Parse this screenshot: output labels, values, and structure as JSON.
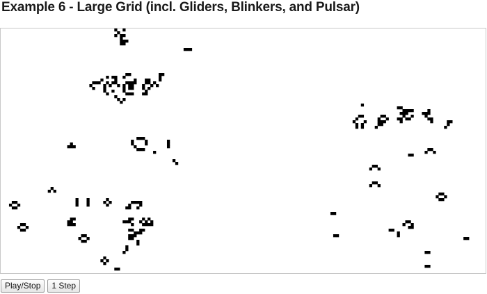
{
  "page": {
    "title": "Example 6 - Large Grid (incl. Gliders, Blinkers, and Pulsar)"
  },
  "controls": {
    "play_stop_label": "Play/Stop",
    "step_label": "1 Step"
  },
  "grid": {
    "cols": 175,
    "rows": 88,
    "live_color": "#000000",
    "dead_color": "#ffffff",
    "border_color": "#c8c8c8",
    "live_cells": [
      [
        41,
        0
      ],
      [
        44,
        0
      ],
      [
        42,
        1
      ],
      [
        41,
        2
      ],
      [
        43,
        2
      ],
      [
        44,
        2
      ],
      [
        43,
        3
      ],
      [
        43,
        4
      ],
      [
        44,
        4
      ],
      [
        45,
        4
      ],
      [
        43,
        5
      ],
      [
        44,
        5
      ],
      [
        66,
        7
      ],
      [
        67,
        7
      ],
      [
        68,
        7
      ],
      [
        45,
        16
      ],
      [
        46,
        16
      ],
      [
        57,
        16
      ],
      [
        58,
        16
      ],
      [
        38,
        17
      ],
      [
        40,
        17
      ],
      [
        41,
        17
      ],
      [
        44,
        17
      ],
      [
        57,
        17
      ],
      [
        36,
        18
      ],
      [
        41,
        18
      ],
      [
        48,
        18
      ],
      [
        52,
        18
      ],
      [
        53,
        18
      ],
      [
        57,
        18
      ],
      [
        33,
        19
      ],
      [
        34,
        19
      ],
      [
        35,
        19
      ],
      [
        38,
        19
      ],
      [
        40,
        19
      ],
      [
        41,
        19
      ],
      [
        45,
        19
      ],
      [
        46,
        19
      ],
      [
        47,
        19
      ],
      [
        48,
        19
      ],
      [
        52,
        19
      ],
      [
        53,
        19
      ],
      [
        55,
        19
      ],
      [
        32,
        20
      ],
      [
        37,
        20
      ],
      [
        39,
        20
      ],
      [
        42,
        20
      ],
      [
        44,
        20
      ],
      [
        46,
        20
      ],
      [
        47,
        20
      ],
      [
        51,
        20
      ],
      [
        54,
        20
      ],
      [
        56,
        20
      ],
      [
        33,
        21
      ],
      [
        37,
        21
      ],
      [
        44,
        21
      ],
      [
        46,
        21
      ],
      [
        47,
        21
      ],
      [
        51,
        21
      ],
      [
        53,
        21
      ],
      [
        37,
        22
      ],
      [
        40,
        22
      ],
      [
        44,
        22
      ],
      [
        52,
        22
      ],
      [
        38,
        23
      ],
      [
        45,
        23
      ],
      [
        46,
        23
      ],
      [
        47,
        23
      ],
      [
        51,
        23
      ],
      [
        52,
        23
      ],
      [
        41,
        24
      ],
      [
        143,
        28
      ],
      [
        144,
        28
      ],
      [
        42,
        25
      ],
      [
        44,
        25
      ],
      [
        145,
        29
      ],
      [
        146,
        29
      ],
      [
        147,
        29
      ],
      [
        148,
        29
      ],
      [
        154,
        29
      ],
      [
        43,
        26
      ],
      [
        130,
        27
      ],
      [
        144,
        30
      ],
      [
        145,
        30
      ],
      [
        146,
        30
      ],
      [
        152,
        30
      ],
      [
        153,
        30
      ],
      [
        154,
        30
      ],
      [
        129,
        31
      ],
      [
        130,
        31
      ],
      [
        137,
        31
      ],
      [
        138,
        31
      ],
      [
        145,
        31
      ],
      [
        148,
        31
      ],
      [
        153,
        31
      ],
      [
        128,
        32
      ],
      [
        136,
        32
      ],
      [
        139,
        32
      ],
      [
        143,
        32
      ],
      [
        144,
        32
      ],
      [
        146,
        32
      ],
      [
        147,
        32
      ],
      [
        154,
        32
      ],
      [
        155,
        32
      ],
      [
        127,
        33
      ],
      [
        131,
        33
      ],
      [
        136,
        33
      ],
      [
        137,
        33
      ],
      [
        138,
        33
      ],
      [
        144,
        33
      ],
      [
        155,
        33
      ],
      [
        161,
        33
      ],
      [
        162,
        33
      ],
      [
        128,
        34
      ],
      [
        130,
        34
      ],
      [
        136,
        34
      ],
      [
        137,
        34
      ],
      [
        161,
        34
      ],
      [
        128,
        35
      ],
      [
        130,
        35
      ],
      [
        135,
        35
      ],
      [
        160,
        35
      ],
      [
        49,
        39
      ],
      [
        50,
        39
      ],
      [
        51,
        39
      ],
      [
        47,
        40
      ],
      [
        52,
        40
      ],
      [
        60,
        40
      ],
      [
        25,
        41
      ],
      [
        47,
        41
      ],
      [
        52,
        41
      ],
      [
        60,
        41
      ],
      [
        24,
        42
      ],
      [
        25,
        42
      ],
      [
        26,
        42
      ],
      [
        48,
        42
      ],
      [
        60,
        42
      ],
      [
        49,
        43
      ],
      [
        50,
        43
      ],
      [
        51,
        43
      ],
      [
        154,
        43
      ],
      [
        155,
        43
      ],
      [
        55,
        44
      ],
      [
        153,
        44
      ],
      [
        156,
        44
      ],
      [
        147,
        45
      ],
      [
        148,
        45
      ],
      [
        62,
        47
      ],
      [
        134,
        49
      ],
      [
        135,
        49
      ],
      [
        63,
        48
      ],
      [
        133,
        50
      ],
      [
        136,
        50
      ],
      [
        134,
        55
      ],
      [
        135,
        55
      ],
      [
        133,
        56
      ],
      [
        136,
        56
      ],
      [
        18,
        57
      ],
      [
        17,
        58
      ],
      [
        19,
        58
      ],
      [
        158,
        59
      ],
      [
        159,
        59
      ],
      [
        157,
        60
      ],
      [
        160,
        60
      ],
      [
        158,
        61
      ],
      [
        159,
        61
      ],
      [
        4,
        62
      ],
      [
        5,
        62
      ],
      [
        3,
        63
      ],
      [
        6,
        63
      ],
      [
        4,
        64
      ],
      [
        5,
        64
      ],
      [
        27,
        61
      ],
      [
        27,
        62
      ],
      [
        27,
        63
      ],
      [
        31,
        61
      ],
      [
        31,
        62
      ],
      [
        31,
        63
      ],
      [
        38,
        61
      ],
      [
        37,
        62
      ],
      [
        39,
        62
      ],
      [
        38,
        63
      ],
      [
        47,
        62
      ],
      [
        48,
        62
      ],
      [
        49,
        62
      ],
      [
        50,
        62
      ],
      [
        46,
        63
      ],
      [
        50,
        63
      ],
      [
        119,
        66
      ],
      [
        120,
        66
      ],
      [
        45,
        64
      ],
      [
        46,
        64
      ],
      [
        49,
        64
      ],
      [
        25,
        68
      ],
      [
        26,
        68
      ],
      [
        46,
        68
      ],
      [
        47,
        68
      ],
      [
        51,
        68
      ],
      [
        53,
        68
      ],
      [
        146,
        69
      ],
      [
        147,
        69
      ],
      [
        24,
        69
      ],
      [
        25,
        69
      ],
      [
        44,
        69
      ],
      [
        45,
        69
      ],
      [
        46,
        69
      ],
      [
        50,
        69
      ],
      [
        52,
        69
      ],
      [
        54,
        69
      ],
      [
        145,
        70
      ],
      [
        148,
        70
      ],
      [
        24,
        70
      ],
      [
        25,
        70
      ],
      [
        26,
        70
      ],
      [
        47,
        70
      ],
      [
        51,
        70
      ],
      [
        52,
        70
      ],
      [
        53,
        70
      ],
      [
        54,
        70
      ],
      [
        147,
        71
      ],
      [
        148,
        71
      ],
      [
        7,
        70
      ],
      [
        8,
        70
      ],
      [
        6,
        71
      ],
      [
        9,
        71
      ],
      [
        7,
        72
      ],
      [
        8,
        72
      ],
      [
        46,
        72
      ],
      [
        47,
        72
      ],
      [
        50,
        72
      ],
      [
        51,
        72
      ],
      [
        140,
        72
      ],
      [
        141,
        72
      ],
      [
        48,
        73
      ],
      [
        49,
        73
      ],
      [
        50,
        73
      ],
      [
        143,
        73
      ],
      [
        120,
        74
      ],
      [
        121,
        74
      ],
      [
        46,
        74
      ],
      [
        47,
        74
      ],
      [
        48,
        74
      ],
      [
        143,
        74
      ],
      [
        167,
        75
      ],
      [
        168,
        75
      ],
      [
        29,
        74
      ],
      [
        30,
        74
      ],
      [
        28,
        75
      ],
      [
        31,
        75
      ],
      [
        29,
        76
      ],
      [
        30,
        76
      ],
      [
        46,
        75
      ],
      [
        47,
        75
      ],
      [
        49,
        76
      ],
      [
        49,
        77
      ],
      [
        45,
        78
      ],
      [
        45,
        79
      ],
      [
        44,
        80
      ],
      [
        153,
        80
      ],
      [
        154,
        80
      ],
      [
        37,
        82
      ],
      [
        36,
        83
      ],
      [
        38,
        83
      ],
      [
        37,
        84
      ],
      [
        153,
        85
      ],
      [
        154,
        85
      ],
      [
        41,
        86
      ],
      [
        42,
        86
      ]
    ]
  }
}
